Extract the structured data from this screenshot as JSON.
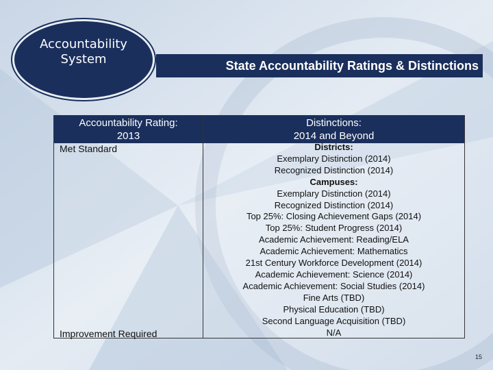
{
  "badge": {
    "lines": [
      "Accountability",
      "System"
    ]
  },
  "title": "State Accountability Ratings & Distinctions",
  "table": {
    "headers": [
      {
        "lines": [
          "Accountability Rating:",
          "2013"
        ]
      },
      {
        "lines": [
          "Distinctions:",
          "2014 and Beyond"
        ]
      }
    ],
    "ratings": [
      "Met Standard",
      "Improvement Required"
    ],
    "distinctions": [
      {
        "text": "Districts:",
        "bold": true
      },
      {
        "text": "Exemplary Distinction (2014)",
        "bold": false
      },
      {
        "text": "Recognized Distinction (2014)",
        "bold": false
      },
      {
        "text": "Campuses:",
        "bold": true
      },
      {
        "text": "Exemplary Distinction (2014)",
        "bold": false
      },
      {
        "text": "Recognized Distinction (2014)",
        "bold": false
      },
      {
        "text": "Top 25%: Closing Achievement Gaps (2014)",
        "bold": false
      },
      {
        "text": "Top 25%: Student Progress (2014)",
        "bold": false
      },
      {
        "text": "Academic Achievement: Reading/ELA",
        "bold": false
      },
      {
        "text": "Academic Achievement: Mathematics",
        "bold": false
      },
      {
        "text": "21st Century Workforce Development (2014)",
        "bold": false
      },
      {
        "text": "Academic Achievement: Science (2014)",
        "bold": false
      },
      {
        "text": "Academic Achievement: Social Studies (2014)",
        "bold": false
      },
      {
        "text": "Fine Arts (TBD)",
        "bold": false
      },
      {
        "text": "Physical Education (TBD)",
        "bold": false
      },
      {
        "text": "Second Language Acquisition (TBD)",
        "bold": false
      },
      {
        "text": "N/A",
        "bold": false
      }
    ]
  },
  "page_number": "15"
}
